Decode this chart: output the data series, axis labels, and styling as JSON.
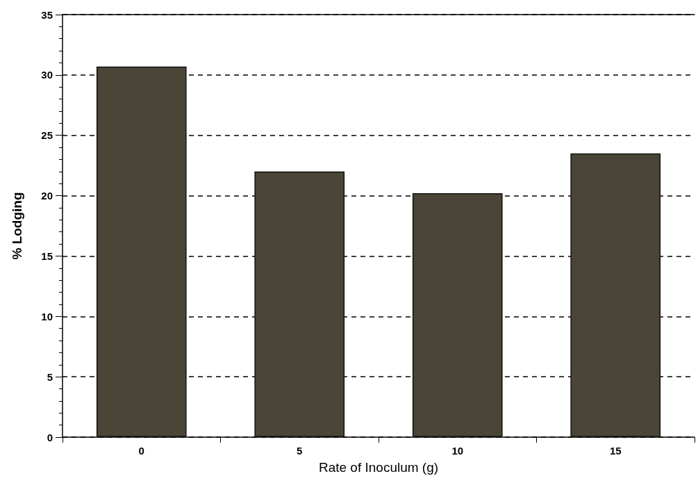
{
  "chart_data": {
    "type": "bar",
    "xlabel": "Rate of Inoculum (g)",
    "ylabel": "% Lodging",
    "categories": [
      "0",
      "5",
      "10",
      "15"
    ],
    "values": [
      30.7,
      22.0,
      20.2,
      23.5
    ],
    "color": "#4b4538",
    "ylim": [
      0,
      35
    ],
    "yticks": [
      0,
      5,
      10,
      15,
      20,
      25,
      30,
      35
    ],
    "grid": "y"
  }
}
